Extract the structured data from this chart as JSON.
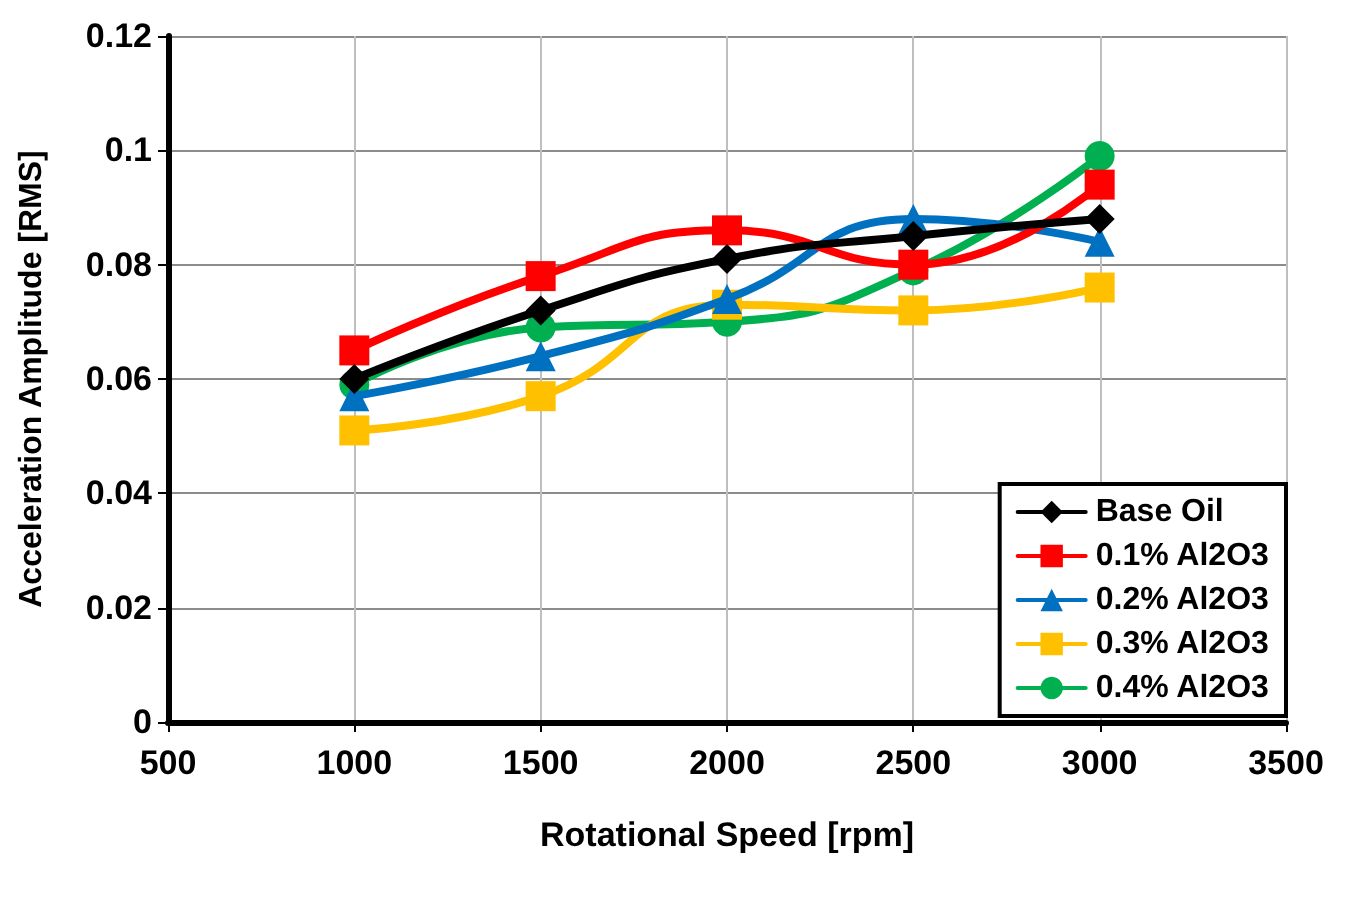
{
  "chart_data": {
    "type": "line",
    "xlabel": "Rotational Speed [rpm]",
    "ylabel": "Acceleration Amplitude [RMS]",
    "x": [
      1000,
      1500,
      2000,
      2500,
      3000
    ],
    "series": [
      {
        "name": "Base Oil",
        "color": "#000000",
        "marker": "diamond",
        "values": [
          0.06,
          0.072,
          0.081,
          0.085,
          0.088
        ]
      },
      {
        "name": "0.1% Al2O3",
        "color": "#ff0000",
        "marker": "square",
        "values": [
          0.065,
          0.078,
          0.086,
          0.08,
          0.094
        ]
      },
      {
        "name": "0.2% Al2O3",
        "color": "#0070c0",
        "marker": "triangle",
        "values": [
          0.057,
          0.064,
          0.074,
          0.088,
          0.084
        ]
      },
      {
        "name": "0.3% Al2O3",
        "color": "#ffc000",
        "marker": "square",
        "values": [
          0.051,
          0.057,
          0.073,
          0.072,
          0.076
        ]
      },
      {
        "name": "0.4% Al2O3",
        "color": "#00b050",
        "marker": "circle",
        "values": [
          0.059,
          0.069,
          0.07,
          0.079,
          0.099
        ]
      }
    ],
    "xlim": [
      500,
      3500
    ],
    "xticks": [
      500,
      1000,
      1500,
      2000,
      2500,
      3000,
      3500
    ],
    "ylim": [
      0,
      0.12
    ],
    "yticks": [
      0,
      0.02,
      0.04,
      0.06,
      0.08,
      0.1,
      0.12
    ],
    "grid": true,
    "legend": "bottom right"
  }
}
